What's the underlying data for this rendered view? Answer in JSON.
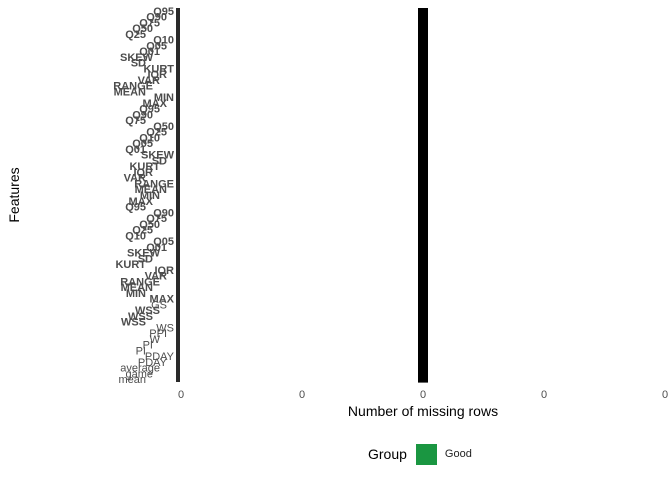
{
  "chart_data": {
    "type": "bar",
    "orientation": "horizontal",
    "xlabel": "Number of missing rows",
    "ylabel": "Features",
    "x_tick_labels": [
      "0",
      "0",
      "0",
      "0",
      "0"
    ],
    "xlim": [
      -1,
      1
    ],
    "grid": false,
    "legend_position": "bottom",
    "legend": {
      "title": "Group",
      "items": [
        {
          "label": "Good",
          "color": "#1a9641"
        }
      ]
    },
    "categories": [
      "Q95",
      "Q90",
      "Q75",
      "Q50",
      "Q25",
      "Q10",
      "Q05",
      "Q01",
      "SKEW",
      "SD",
      "KURT",
      "IQR",
      "VAR",
      "RANGE",
      "MEAN",
      "MIN",
      "MAX",
      "Q95",
      "Q90",
      "Q75",
      "Q50",
      "Q25",
      "Q10",
      "Q05",
      "Q01",
      "SKEW",
      "SD",
      "KURT",
      "IQR",
      "VAR",
      "RANGE",
      "MEAN",
      "MIN",
      "MAX",
      "Q95",
      "Q90",
      "Q75",
      "Q50",
      "Q25",
      "Q10",
      "Q05",
      "Q01",
      "SKEW",
      "SD",
      "KURT",
      "IQR",
      "VAR",
      "RANGE",
      "MEAN",
      "MIN",
      "MAX",
      "GS",
      "WSS",
      "WSS",
      "WSS",
      "WS",
      "PPI",
      "W",
      "PI",
      "PI",
      "PDAY",
      "PDAY",
      "average",
      "game",
      "mean"
    ],
    "values": [
      0,
      0,
      0,
      0,
      0,
      0,
      0,
      0,
      0,
      0,
      0,
      0,
      0,
      0,
      0,
      0,
      0,
      0,
      0,
      0,
      0,
      0,
      0,
      0,
      0,
      0,
      0,
      0,
      0,
      0,
      0,
      0,
      0,
      0,
      0,
      0,
      0,
      0,
      0,
      0,
      0,
      0,
      0,
      0,
      0,
      0,
      0,
      0,
      0,
      0,
      0,
      0,
      0,
      0,
      0,
      0,
      0,
      0,
      0,
      0,
      0,
      0,
      0,
      0,
      0
    ]
  },
  "colors": {
    "bar": "#000000",
    "text": "#4d4d4d",
    "good": "#1a9641"
  }
}
